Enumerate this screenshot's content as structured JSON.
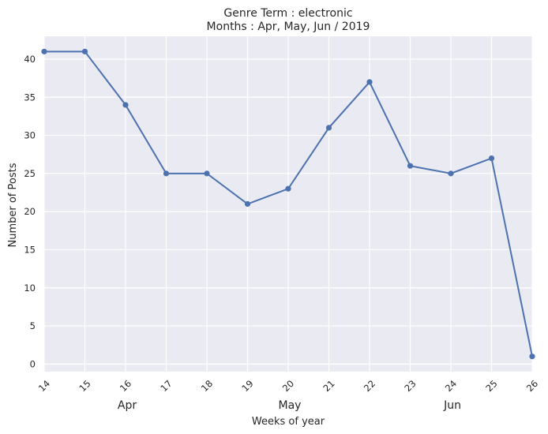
{
  "chart_data": {
    "type": "line",
    "title_line1": "Genre Term : electronic",
    "title_line2": "Months : Apr, May, Jun / 2019",
    "xlabel": "Weeks of year",
    "ylabel": "Number of Posts",
    "x": [
      14,
      15,
      16,
      17,
      18,
      19,
      20,
      21,
      22,
      23,
      24,
      25,
      26
    ],
    "values": [
      41,
      41,
      34,
      25,
      25,
      21,
      23,
      31,
      37,
      26,
      25,
      27,
      1
    ],
    "xlim": [
      14,
      26
    ],
    "ylim": [
      -1,
      43
    ],
    "yticks": [
      0,
      5,
      10,
      15,
      20,
      25,
      30,
      35,
      40
    ],
    "month_labels": [
      {
        "label": "Apr",
        "week": 16
      },
      {
        "label": "May",
        "week": 20
      },
      {
        "label": "Jun",
        "week": 24
      }
    ],
    "grid": true,
    "colors": {
      "background": "#EAEAF2",
      "grid": "#FFFFFF",
      "line": "#4C72B0"
    }
  }
}
